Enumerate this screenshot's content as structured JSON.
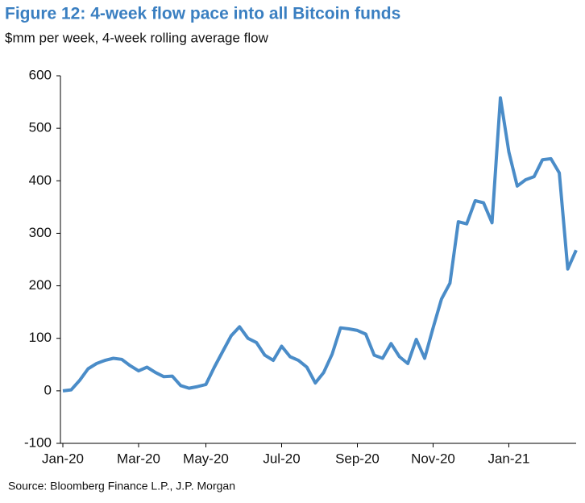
{
  "chart_data": {
    "type": "line",
    "title": "Figure 12: 4-week flow pace into all Bitcoin funds",
    "subtitle": "$mm per week, 4-week rolling average flow",
    "source": "Source: Bloomberg Finance L.P., J.P. Morgan",
    "categories": [
      "Jan-20",
      null,
      null,
      null,
      null,
      null,
      null,
      null,
      null,
      "Mar-20",
      null,
      null,
      null,
      null,
      null,
      null,
      null,
      "May-20",
      null,
      null,
      null,
      null,
      null,
      null,
      null,
      null,
      "Jul-20",
      null,
      null,
      null,
      null,
      null,
      null,
      null,
      null,
      "Sep-20",
      null,
      null,
      null,
      null,
      null,
      null,
      null,
      null,
      "Nov-20",
      null,
      null,
      null,
      null,
      null,
      null,
      null,
      null,
      "Jan-21",
      null,
      null,
      null,
      null,
      null,
      null,
      null,
      null
    ],
    "series": [
      {
        "name": "4-week flow pace",
        "color": "#4a8cc8",
        "values": [
          0,
          2,
          20,
          42,
          52,
          58,
          62,
          60,
          48,
          38,
          45,
          35,
          27,
          28,
          10,
          5,
          8,
          12,
          45,
          75,
          105,
          122,
          100,
          92,
          68,
          58,
          85,
          65,
          58,
          45,
          15,
          35,
          70,
          120,
          118,
          115,
          108,
          68,
          62,
          90,
          65,
          52,
          98,
          62,
          120,
          175,
          205,
          322,
          318,
          362,
          358,
          320,
          558,
          455,
          390,
          402,
          408,
          440,
          442,
          415,
          232,
          268
        ]
      }
    ],
    "ylim": [
      -100,
      600
    ],
    "yticks": [
      -100,
      0,
      100,
      200,
      300,
      400,
      500,
      600
    ]
  }
}
